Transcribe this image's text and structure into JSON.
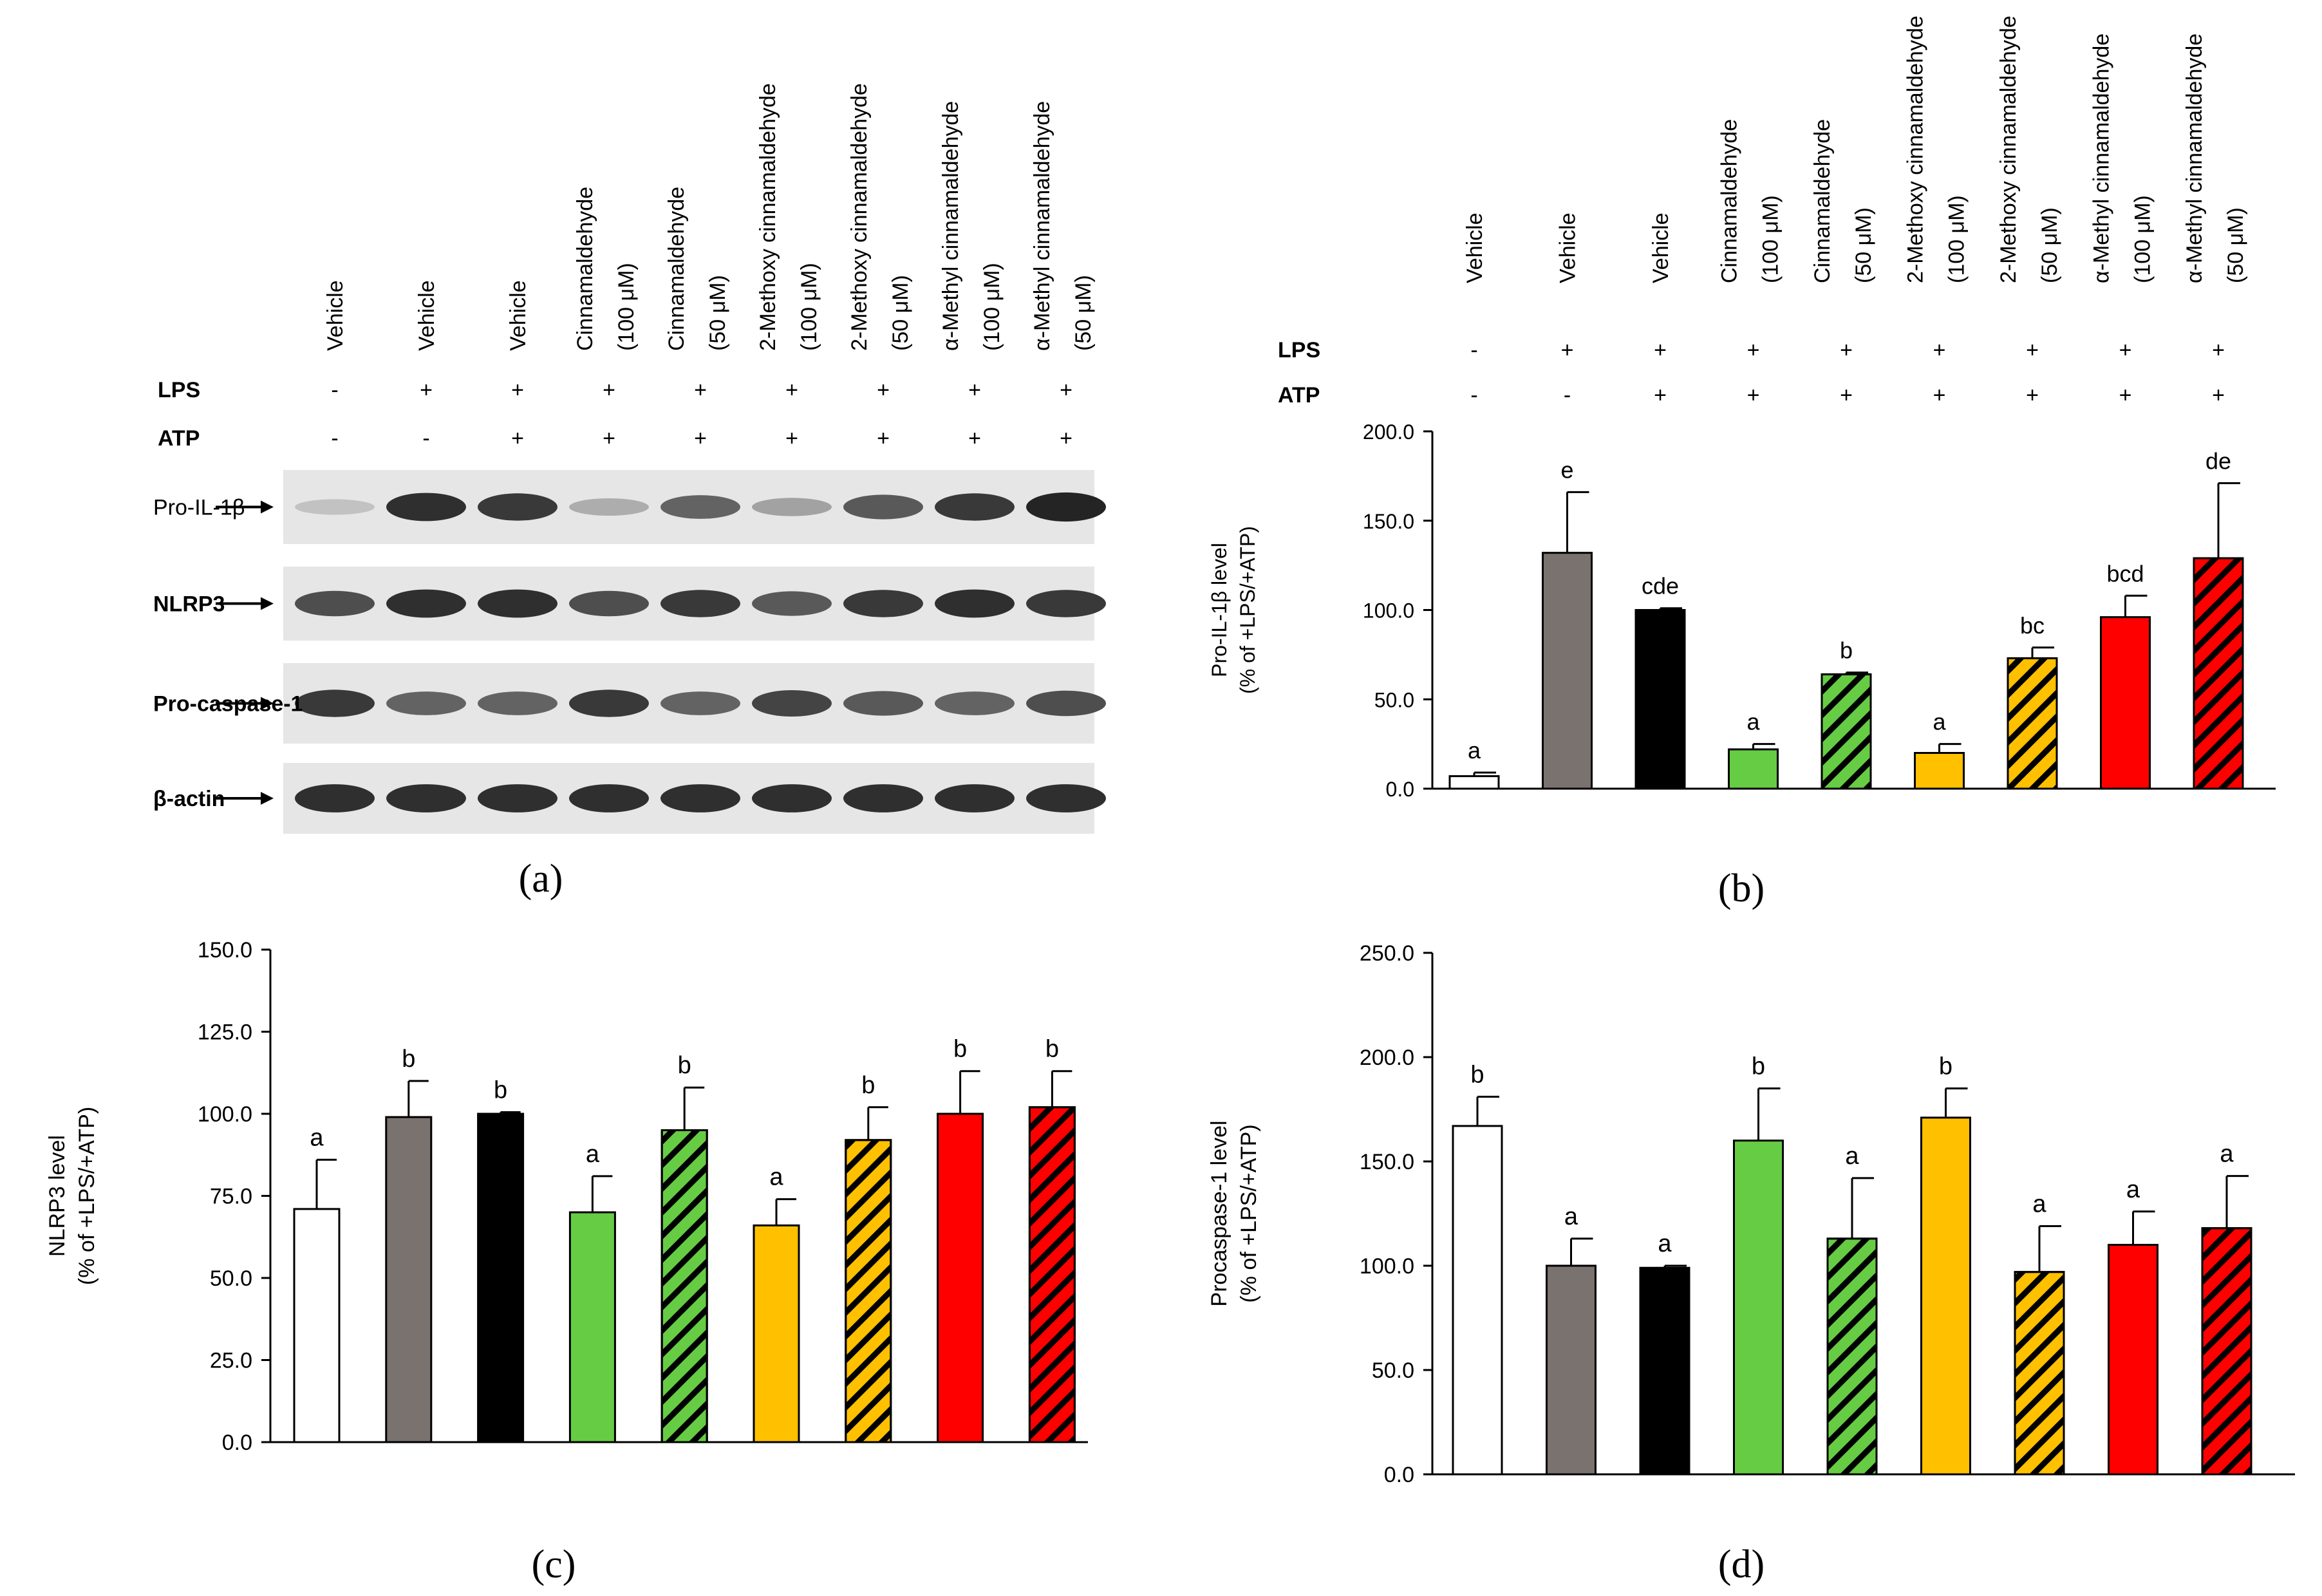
{
  "lanes": [
    {
      "name": "Vehicle",
      "dose": ""
    },
    {
      "name": "Vehicle",
      "dose": ""
    },
    {
      "name": "Vehicle",
      "dose": ""
    },
    {
      "name": "Cinnamaldehyde",
      "dose": "(100 μM)"
    },
    {
      "name": "Cinnamaldehyde",
      "dose": "(50 μM)"
    },
    {
      "name": "2-Methoxy cinnamaldehyde",
      "dose": "(100 μM)"
    },
    {
      "name": "2-Methoxy cinnamaldehyde",
      "dose": "(50 μM)"
    },
    {
      "name": "α-Methyl cinnamaldehyde",
      "dose": "(100 μM)"
    },
    {
      "name": "α-Methyl cinnamaldehyde",
      "dose": "(50 μM)"
    }
  ],
  "treatment_rows": [
    {
      "label": "LPS",
      "signs": [
        "-",
        "+",
        "+",
        "+",
        "+",
        "+",
        "+",
        "+",
        "+"
      ]
    },
    {
      "label": "ATP",
      "signs": [
        "-",
        "-",
        "+",
        "+",
        "+",
        "+",
        "+",
        "+",
        "+"
      ]
    }
  ],
  "blot": {
    "labels": [
      "Pro-IL-1β",
      "NLRP3",
      "Pro-caspase-1",
      "β-actin"
    ],
    "intensity": [
      [
        0.15,
        0.85,
        0.8,
        0.25,
        0.6,
        0.3,
        0.65,
        0.8,
        0.9
      ],
      [
        0.7,
        0.85,
        0.85,
        0.7,
        0.8,
        0.65,
        0.8,
        0.85,
        0.8
      ],
      [
        0.8,
        0.6,
        0.6,
        0.8,
        0.6,
        0.75,
        0.65,
        0.6,
        0.7
      ],
      [
        0.85,
        0.85,
        0.85,
        0.85,
        0.85,
        0.85,
        0.85,
        0.85,
        0.85
      ]
    ]
  },
  "bar_styles": [
    {
      "fill": "#ffffff",
      "hatch": false
    },
    {
      "fill": "#7a726e",
      "hatch": false
    },
    {
      "fill": "#000000",
      "hatch": false
    },
    {
      "fill": "#66cc44",
      "hatch": false
    },
    {
      "fill": "#66cc44",
      "hatch": true
    },
    {
      "fill": "#ffc000",
      "hatch": false
    },
    {
      "fill": "#ffc000",
      "hatch": true
    },
    {
      "fill": "#ff0000",
      "hatch": false
    },
    {
      "fill": "#ff0000",
      "hatch": true
    }
  ],
  "panel_letters": {
    "a": "a",
    "b": "b",
    "c": "c",
    "d": "d"
  },
  "chart_data": [
    {
      "panel": "b",
      "type": "bar",
      "ylabel": "Pro-IL-1β level",
      "ylabel2": "(% of +LPS/+ATP)",
      "ylim": [
        0,
        200
      ],
      "yticks": [
        "0.0",
        "50.0",
        "100.0",
        "150.0",
        "200.0"
      ],
      "values": [
        7,
        132,
        100,
        22,
        64,
        20,
        73,
        96,
        129
      ],
      "errors": [
        2,
        34,
        1,
        3,
        1,
        5,
        6,
        12,
        42
      ],
      "letters": [
        "a",
        "e",
        "cde",
        "a",
        "b",
        "a",
        "bc",
        "bcd",
        "de"
      ]
    },
    {
      "panel": "c",
      "type": "bar",
      "ylabel": "NLRP3  level",
      "ylabel2": "(% of +LPS/+ATP)",
      "ylim": [
        0,
        150
      ],
      "yticks": [
        "0.0",
        "25.0",
        "50.0",
        "75.0",
        "100.0",
        "125.0",
        "150.0"
      ],
      "values": [
        71,
        99,
        100,
        70,
        95,
        66,
        92,
        100,
        102
      ],
      "errors": [
        15,
        11,
        0.5,
        11,
        13,
        8,
        10,
        13,
        11
      ],
      "letters": [
        "a",
        "b",
        "b",
        "a",
        "b",
        "a",
        "b",
        "b",
        "b"
      ]
    },
    {
      "panel": "d",
      "type": "bar",
      "ylabel": "Procaspase-1 level",
      "ylabel2": "(% of +LPS/+ATP)",
      "ylim": [
        0,
        250
      ],
      "yticks": [
        "0.0",
        "50.0",
        "100.0",
        "150.0",
        "200.0",
        "250.0"
      ],
      "values": [
        167,
        100,
        99,
        160,
        113,
        171,
        97,
        110,
        118
      ],
      "errors": [
        14,
        13,
        1,
        25,
        29,
        14,
        22,
        16,
        25
      ],
      "letters": [
        "b",
        "a",
        "a",
        "b",
        "a",
        "b",
        "a",
        "a",
        "a"
      ]
    }
  ]
}
